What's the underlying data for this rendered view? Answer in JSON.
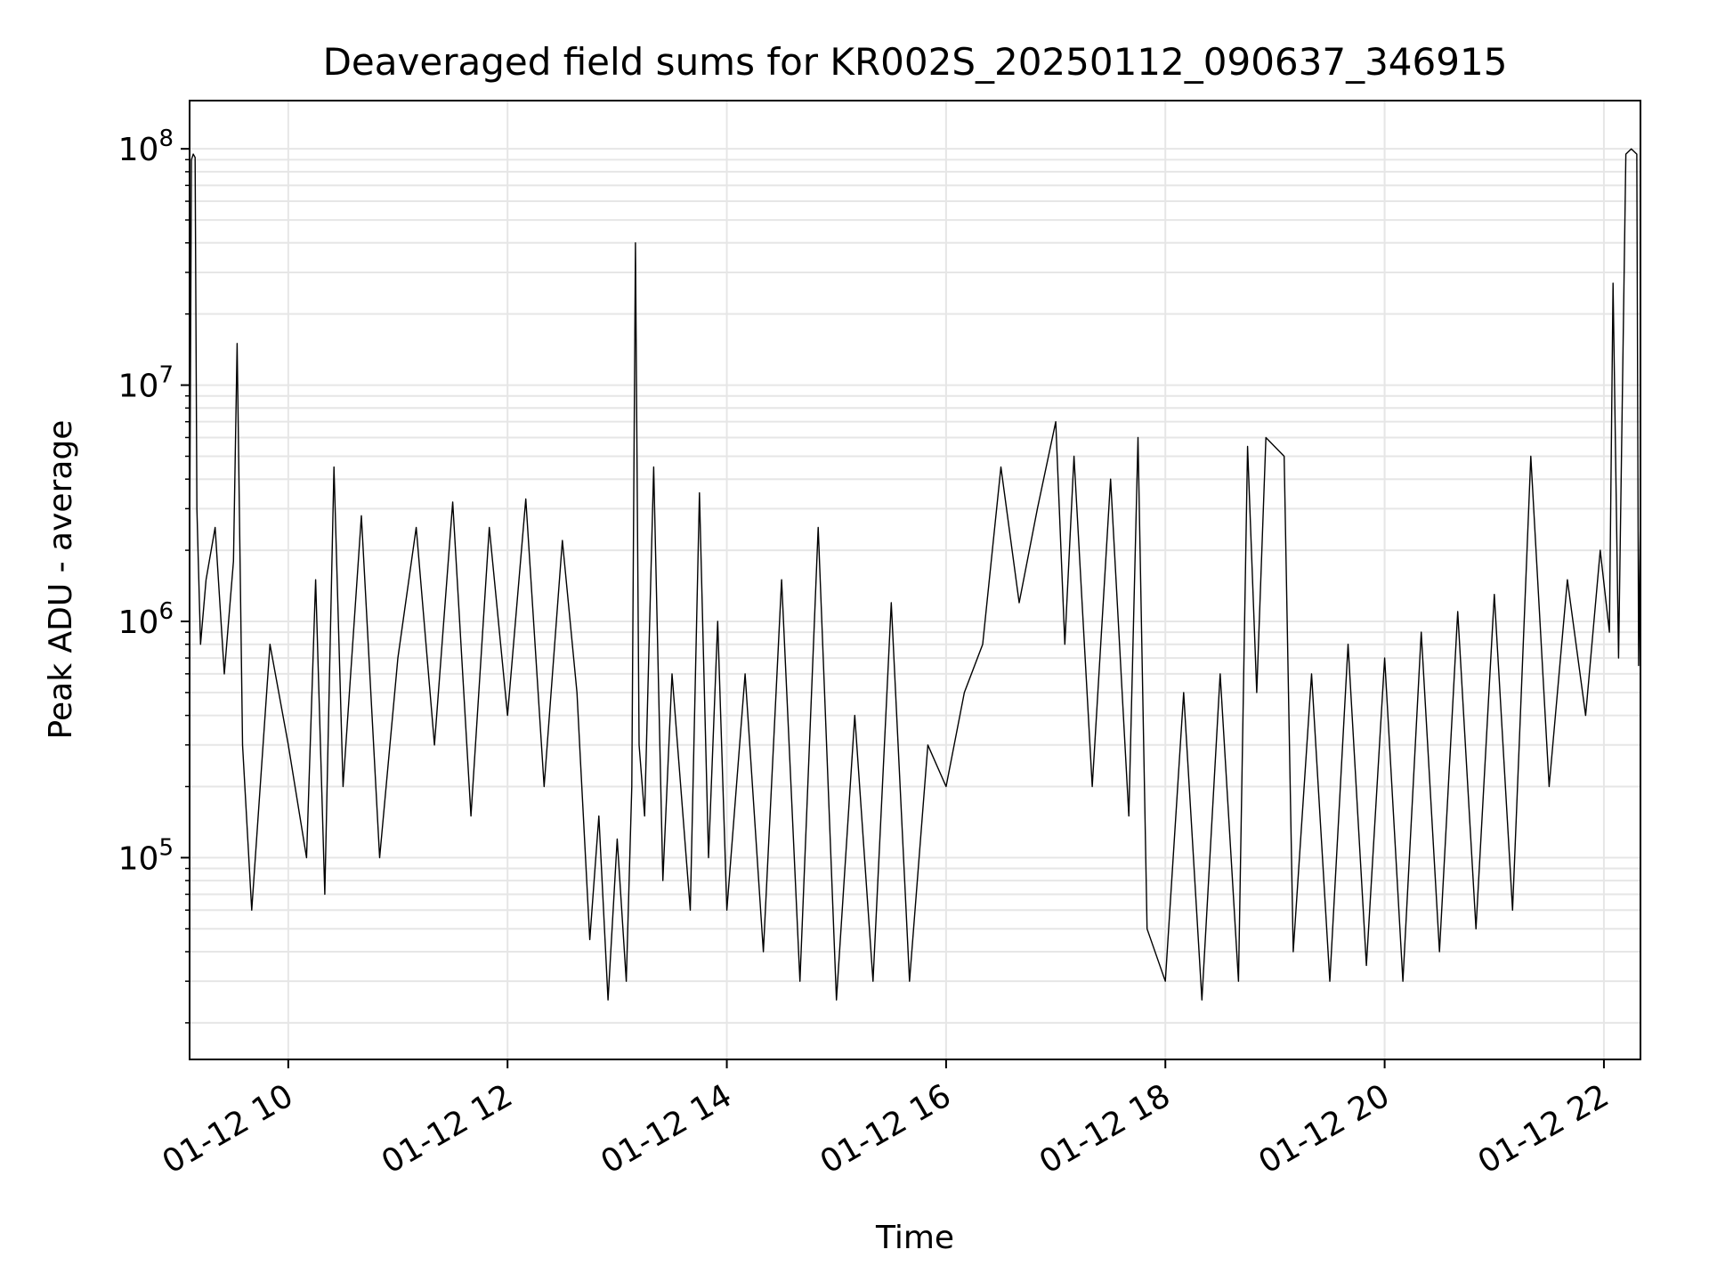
{
  "chart_data": {
    "type": "line",
    "title": "Deaveraged field sums for KR002S_20250112_090637_346915",
    "xlabel": "Time",
    "ylabel": "Peak ADU - average",
    "yscale": "log",
    "grid": true,
    "line_color": "#000000",
    "grid_color": "#e6e6e6",
    "xlim": [
      "2025-01-12 09:06",
      "2025-01-12 22:20"
    ],
    "ylim": [
      14000,
      160000000
    ],
    "x_ticks": [
      {
        "value": "2025-01-12 10:00",
        "label": "01-12 10"
      },
      {
        "value": "2025-01-12 12:00",
        "label": "01-12 12"
      },
      {
        "value": "2025-01-12 14:00",
        "label": "01-12 14"
      },
      {
        "value": "2025-01-12 16:00",
        "label": "01-12 16"
      },
      {
        "value": "2025-01-12 18:00",
        "label": "01-12 18"
      },
      {
        "value": "2025-01-12 20:00",
        "label": "01-12 20"
      },
      {
        "value": "2025-01-12 22:00",
        "label": "01-12 22"
      }
    ],
    "y_ticks": [
      {
        "value": 100000,
        "base": "10",
        "exp": "5"
      },
      {
        "value": 1000000,
        "base": "10",
        "exp": "6"
      },
      {
        "value": 10000000,
        "base": "10",
        "exp": "7"
      },
      {
        "value": 100000000,
        "base": "10",
        "exp": "8"
      }
    ],
    "series": [
      {
        "points": [
          [
            "2025-01-12 09:06",
            1800000
          ],
          [
            "2025-01-12 09:07",
            90000000
          ],
          [
            "2025-01-12 09:08",
            95000000
          ],
          [
            "2025-01-12 09:09",
            92000000
          ],
          [
            "2025-01-12 09:10",
            3000000
          ],
          [
            "2025-01-12 09:12",
            800000
          ],
          [
            "2025-01-12 09:15",
            1500000
          ],
          [
            "2025-01-12 09:20",
            2500000
          ],
          [
            "2025-01-12 09:25",
            600000
          ],
          [
            "2025-01-12 09:30",
            1800000
          ],
          [
            "2025-01-12 09:32",
            15000000
          ],
          [
            "2025-01-12 09:35",
            300000
          ],
          [
            "2025-01-12 09:40",
            60000
          ],
          [
            "2025-01-12 09:50",
            800000
          ],
          [
            "2025-01-12 10:00",
            300000
          ],
          [
            "2025-01-12 10:10",
            100000
          ],
          [
            "2025-01-12 10:15",
            1500000
          ],
          [
            "2025-01-12 10:20",
            70000
          ],
          [
            "2025-01-12 10:25",
            4500000
          ],
          [
            "2025-01-12 10:30",
            200000
          ],
          [
            "2025-01-12 10:40",
            2800000
          ],
          [
            "2025-01-12 10:50",
            100000
          ],
          [
            "2025-01-12 11:00",
            700000
          ],
          [
            "2025-01-12 11:10",
            2500000
          ],
          [
            "2025-01-12 11:20",
            300000
          ],
          [
            "2025-01-12 11:30",
            3200000
          ],
          [
            "2025-01-12 11:40",
            150000
          ],
          [
            "2025-01-12 11:50",
            2500000
          ],
          [
            "2025-01-12 12:00",
            400000
          ],
          [
            "2025-01-12 12:10",
            3300000
          ],
          [
            "2025-01-12 12:20",
            200000
          ],
          [
            "2025-01-12 12:30",
            2200000
          ],
          [
            "2025-01-12 12:38",
            500000
          ],
          [
            "2025-01-12 12:40",
            250000
          ],
          [
            "2025-01-12 12:45",
            45000
          ],
          [
            "2025-01-12 12:50",
            150000
          ],
          [
            "2025-01-12 12:55",
            25000
          ],
          [
            "2025-01-12 13:00",
            120000
          ],
          [
            "2025-01-12 13:05",
            30000
          ],
          [
            "2025-01-12 13:08",
            200000
          ],
          [
            "2025-01-12 13:10",
            40000000
          ],
          [
            "2025-01-12 13:12",
            300000
          ],
          [
            "2025-01-12 13:15",
            150000
          ],
          [
            "2025-01-12 13:20",
            4500000
          ],
          [
            "2025-01-12 13:25",
            80000
          ],
          [
            "2025-01-12 13:30",
            600000
          ],
          [
            "2025-01-12 13:40",
            60000
          ],
          [
            "2025-01-12 13:45",
            3500000
          ],
          [
            "2025-01-12 13:50",
            100000
          ],
          [
            "2025-01-12 13:55",
            1000000
          ],
          [
            "2025-01-12 14:00",
            60000
          ],
          [
            "2025-01-12 14:10",
            600000
          ],
          [
            "2025-01-12 14:20",
            40000
          ],
          [
            "2025-01-12 14:30",
            1500000
          ],
          [
            "2025-01-12 14:40",
            30000
          ],
          [
            "2025-01-12 14:50",
            2500000
          ],
          [
            "2025-01-12 15:00",
            25000
          ],
          [
            "2025-01-12 15:10",
            400000
          ],
          [
            "2025-01-12 15:20",
            30000
          ],
          [
            "2025-01-12 15:30",
            1200000
          ],
          [
            "2025-01-12 15:40",
            30000
          ],
          [
            "2025-01-12 15:50",
            300000
          ],
          [
            "2025-01-12 16:00",
            200000
          ],
          [
            "2025-01-12 16:10",
            500000
          ],
          [
            "2025-01-12 16:20",
            800000
          ],
          [
            "2025-01-12 16:30",
            4500000
          ],
          [
            "2025-01-12 16:40",
            1200000
          ],
          [
            "2025-01-12 16:50",
            3000000
          ],
          [
            "2025-01-12 17:00",
            7000000
          ],
          [
            "2025-01-12 17:05",
            800000
          ],
          [
            "2025-01-12 17:10",
            5000000
          ],
          [
            "2025-01-12 17:20",
            200000
          ],
          [
            "2025-01-12 17:30",
            4000000
          ],
          [
            "2025-01-12 17:40",
            150000
          ],
          [
            "2025-01-12 17:45",
            6000000
          ],
          [
            "2025-01-12 17:50",
            50000
          ],
          [
            "2025-01-12 18:00",
            30000
          ],
          [
            "2025-01-12 18:10",
            500000
          ],
          [
            "2025-01-12 18:20",
            25000
          ],
          [
            "2025-01-12 18:30",
            600000
          ],
          [
            "2025-01-12 18:40",
            30000
          ],
          [
            "2025-01-12 18:45",
            5500000
          ],
          [
            "2025-01-12 18:50",
            500000
          ],
          [
            "2025-01-12 18:55",
            6000000
          ],
          [
            "2025-01-12 19:05",
            5000000
          ],
          [
            "2025-01-12 19:10",
            40000
          ],
          [
            "2025-01-12 19:20",
            600000
          ],
          [
            "2025-01-12 19:30",
            30000
          ],
          [
            "2025-01-12 19:40",
            800000
          ],
          [
            "2025-01-12 19:50",
            35000
          ],
          [
            "2025-01-12 20:00",
            700000
          ],
          [
            "2025-01-12 20:10",
            30000
          ],
          [
            "2025-01-12 20:20",
            900000
          ],
          [
            "2025-01-12 20:30",
            40000
          ],
          [
            "2025-01-12 20:40",
            1100000
          ],
          [
            "2025-01-12 20:50",
            50000
          ],
          [
            "2025-01-12 21:00",
            1300000
          ],
          [
            "2025-01-12 21:10",
            60000
          ],
          [
            "2025-01-12 21:20",
            5000000
          ],
          [
            "2025-01-12 21:30",
            200000
          ],
          [
            "2025-01-12 21:40",
            1500000
          ],
          [
            "2025-01-12 21:50",
            400000
          ],
          [
            "2025-01-12 21:58",
            2000000
          ],
          [
            "2025-01-12 22:03",
            900000
          ],
          [
            "2025-01-12 22:05",
            27000000
          ],
          [
            "2025-01-12 22:08",
            700000
          ],
          [
            "2025-01-12 22:12",
            95000000
          ],
          [
            "2025-01-12 22:15",
            100000000
          ],
          [
            "2025-01-12 22:18",
            95000000
          ],
          [
            "2025-01-12 22:19",
            650000
          ],
          [
            "2025-01-12 22:20",
            3000000
          ]
        ]
      }
    ]
  }
}
